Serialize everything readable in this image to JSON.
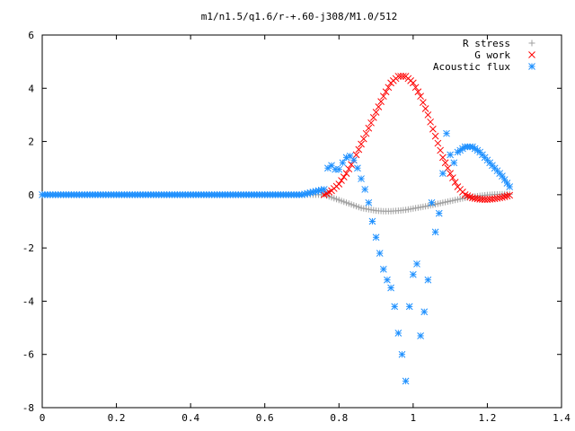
{
  "chart_data": {
    "type": "scatter",
    "title": "m1/n1.5/q1.6/r-+.60-j308/M1.0/512",
    "xlim": [
      0,
      1.4
    ],
    "ylim": [
      -8,
      6
    ],
    "x_ticks": [
      "0",
      "0.2",
      "0.4",
      "0.6",
      "0.8",
      "1",
      "1.2",
      "1.4"
    ],
    "y_ticks": [
      "-8",
      "-6",
      "-4",
      "-2",
      "0",
      "2",
      "4",
      "6"
    ],
    "legend_position": "top-right",
    "grid": false,
    "series": [
      {
        "name": "R stress",
        "marker": "plus",
        "color": "#a0a0a0",
        "points": [
          [
            0.0,
            0
          ],
          [
            0.1,
            0
          ],
          [
            0.2,
            0
          ],
          [
            0.3,
            0
          ],
          [
            0.4,
            0
          ],
          [
            0.5,
            0
          ],
          [
            0.6,
            0
          ],
          [
            0.7,
            0
          ],
          [
            0.76,
            0
          ],
          [
            0.78,
            -0.1
          ],
          [
            0.8,
            -0.2
          ],
          [
            0.82,
            -0.3
          ],
          [
            0.84,
            -0.4
          ],
          [
            0.86,
            -0.5
          ],
          [
            0.88,
            -0.55
          ],
          [
            0.9,
            -0.6
          ],
          [
            0.92,
            -0.62
          ],
          [
            0.94,
            -0.62
          ],
          [
            0.96,
            -0.6
          ],
          [
            0.98,
            -0.57
          ],
          [
            1.0,
            -0.52
          ],
          [
            1.02,
            -0.47
          ],
          [
            1.04,
            -0.42
          ],
          [
            1.06,
            -0.36
          ],
          [
            1.08,
            -0.3
          ],
          [
            1.1,
            -0.24
          ],
          [
            1.12,
            -0.18
          ],
          [
            1.14,
            -0.12
          ],
          [
            1.16,
            -0.08
          ],
          [
            1.18,
            -0.04
          ],
          [
            1.2,
            -0.01
          ],
          [
            1.22,
            0.01
          ],
          [
            1.24,
            0.02
          ],
          [
            1.26,
            0.02
          ]
        ]
      },
      {
        "name": "G work",
        "marker": "cross",
        "color": "#ff0000",
        "points": [
          [
            0.76,
            0
          ],
          [
            0.78,
            0.15
          ],
          [
            0.8,
            0.4
          ],
          [
            0.82,
            0.8
          ],
          [
            0.84,
            1.3
          ],
          [
            0.86,
            1.9
          ],
          [
            0.88,
            2.5
          ],
          [
            0.9,
            3.1
          ],
          [
            0.92,
            3.7
          ],
          [
            0.94,
            4.2
          ],
          [
            0.96,
            4.45
          ],
          [
            0.98,
            4.45
          ],
          [
            1.0,
            4.2
          ],
          [
            1.02,
            3.7
          ],
          [
            1.04,
            3.0
          ],
          [
            1.06,
            2.2
          ],
          [
            1.08,
            1.4
          ],
          [
            1.1,
            0.8
          ],
          [
            1.12,
            0.3
          ],
          [
            1.14,
            0.0
          ],
          [
            1.16,
            -0.12
          ],
          [
            1.18,
            -0.17
          ],
          [
            1.2,
            -0.18
          ],
          [
            1.22,
            -0.15
          ],
          [
            1.24,
            -0.1
          ],
          [
            1.26,
            -0.02
          ]
        ]
      },
      {
        "name": "Acoustic flux",
        "marker": "star",
        "color": "#1e90ff",
        "points": [
          [
            0.0,
            0
          ],
          [
            0.1,
            0
          ],
          [
            0.2,
            0
          ],
          [
            0.3,
            0
          ],
          [
            0.4,
            0
          ],
          [
            0.5,
            0
          ],
          [
            0.6,
            0
          ],
          [
            0.7,
            0
          ],
          [
            0.76,
            0.2
          ],
          [
            0.77,
            1.0
          ],
          [
            0.78,
            1.1
          ],
          [
            0.79,
            0.95
          ],
          [
            0.8,
            0.95
          ],
          [
            0.81,
            1.2
          ],
          [
            0.82,
            1.4
          ],
          [
            0.83,
            1.45
          ],
          [
            0.84,
            1.3
          ],
          [
            0.85,
            1.0
          ],
          [
            0.86,
            0.6
          ],
          [
            0.87,
            0.2
          ],
          [
            0.88,
            -0.3
          ],
          [
            0.89,
            -1.0
          ],
          [
            0.9,
            -1.6
          ],
          [
            0.91,
            -2.2
          ],
          [
            0.92,
            -2.8
          ],
          [
            0.93,
            -3.2
          ],
          [
            0.94,
            -3.5
          ],
          [
            0.95,
            -4.2
          ],
          [
            0.96,
            -5.2
          ],
          [
            0.97,
            -6.0
          ],
          [
            0.98,
            -7.0
          ],
          [
            0.99,
            -4.2
          ],
          [
            1.0,
            -3.0
          ],
          [
            1.01,
            -2.6
          ],
          [
            1.02,
            -5.3
          ],
          [
            1.03,
            -4.4
          ],
          [
            1.04,
            -3.2
          ],
          [
            1.05,
            -0.3
          ],
          [
            1.06,
            -1.4
          ],
          [
            1.07,
            -0.7
          ],
          [
            1.08,
            0.8
          ],
          [
            1.09,
            2.3
          ],
          [
            1.1,
            1.5
          ],
          [
            1.11,
            1.2
          ],
          [
            1.12,
            1.6
          ],
          [
            1.14,
            1.8
          ],
          [
            1.16,
            1.8
          ],
          [
            1.18,
            1.6
          ],
          [
            1.2,
            1.3
          ],
          [
            1.22,
            1.0
          ],
          [
            1.24,
            0.7
          ],
          [
            1.26,
            0.3
          ]
        ]
      }
    ]
  }
}
